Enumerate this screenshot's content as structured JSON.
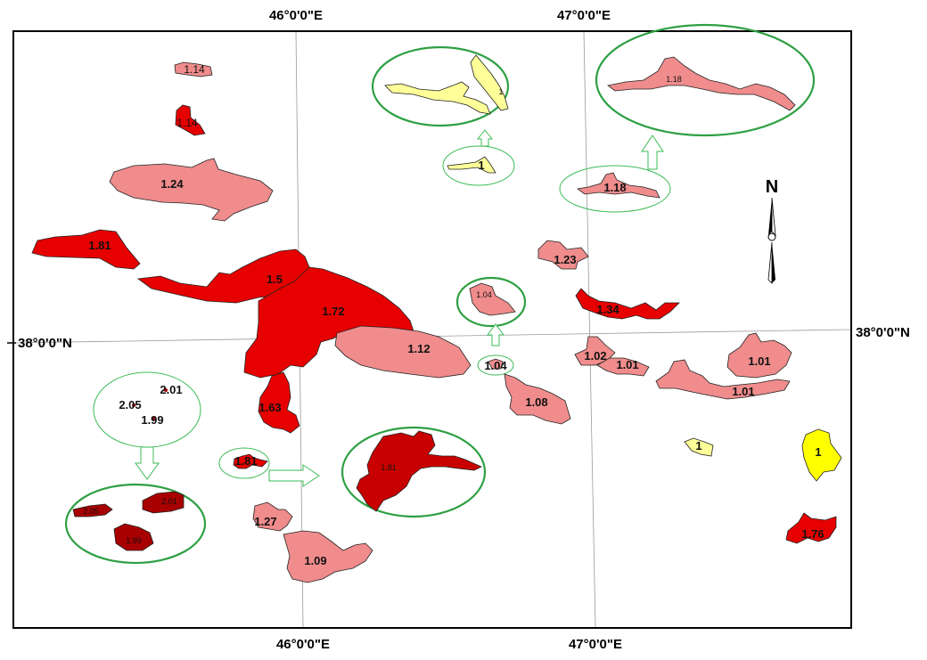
{
  "coords": {
    "top_lon_1": "46°0'0\"E",
    "top_lon_2": "47°0'0\"E",
    "bottom_lon_1": "46°0'0\"E",
    "bottom_lon_2": "47°0'0\"E",
    "left_lat": "38°0'0\"N",
    "right_lat": "38°0'0\"N"
  },
  "north_arrow": {
    "label": "N",
    "icon": "north-arrow-icon"
  },
  "colors": {
    "class_1": "#ffff99",
    "class_1_alt": "#ffff00",
    "class_low": "#f08c8c",
    "class_high": "#e60000",
    "class_highest": "#a80000",
    "ring": "#2ea043"
  },
  "labels": {
    "p114": "1.14",
    "p114b": "1.14",
    "p124": "1.24",
    "p181": "1.81",
    "p15": "1.5",
    "p172": "1.72",
    "p112": "1.12",
    "p163": "1.63",
    "p181s": "1.81",
    "p127": "1.27",
    "p109": "1.09",
    "p104s": "1.04",
    "p104z": "1.04",
    "p108": "1.08",
    "p1s": "1",
    "p1z": "1",
    "p118s": "1.18",
    "p118z": "1.18",
    "p123": "1.23",
    "p134": "1.34",
    "p102": "1.02",
    "p101a": "1.01",
    "p101b": "1.01",
    "p101c": "1.01",
    "p1y1": "1",
    "p1y2": "1",
    "p176": "1.76",
    "p181z": "1.81",
    "c205": "2.05",
    "c201": "2.01",
    "c199": "1.99",
    "z205": "2.05",
    "z201": "2.01",
    "z199": "1.99"
  }
}
